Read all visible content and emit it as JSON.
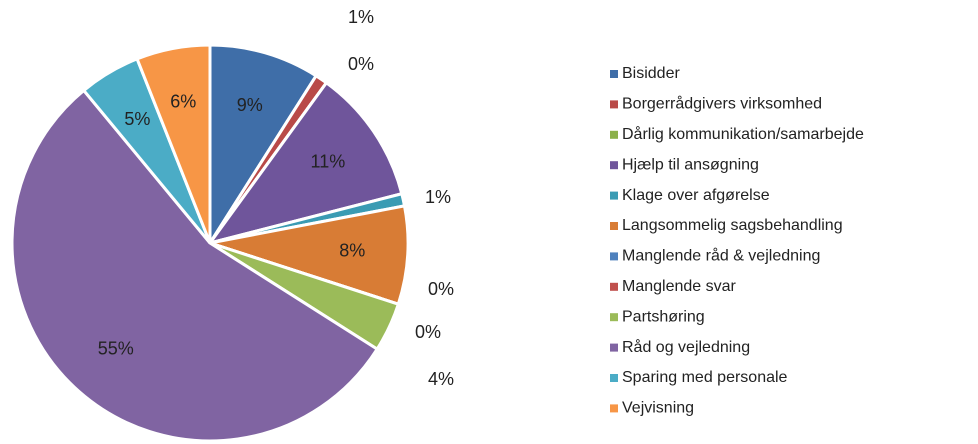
{
  "chart_data": {
    "type": "pie",
    "categories": [
      "Bisidder",
      "Borgerrådgivers virksomhed",
      "Dårlig kommunikation/samarbejde",
      "Hjælp til ansøgning",
      "Klage over afgørelse",
      "Langsommelig sagsbehandling",
      "Manglende råd & vejledning",
      "Manglende svar",
      "Partshøring",
      "Råd og vejledning",
      "Sparing med personale",
      "Vejvisning"
    ],
    "values": [
      9,
      1,
      0,
      11,
      1,
      8,
      0,
      0,
      4,
      55,
      5,
      6
    ],
    "value_labels": [
      "9%",
      "1%",
      "0%",
      "11%",
      "1%",
      "8%",
      "0%",
      "0%",
      "4%",
      "55%",
      "5%",
      "6%"
    ],
    "colors": [
      "#3f6ea8",
      "#b94a48",
      "#8bb04a",
      "#6f559b",
      "#3a9bb3",
      "#d87c35",
      "#4f81bd",
      "#c0504d",
      "#9bbb59",
      "#8064a2",
      "#4bacc6",
      "#f79646"
    ],
    "legend": "right"
  }
}
